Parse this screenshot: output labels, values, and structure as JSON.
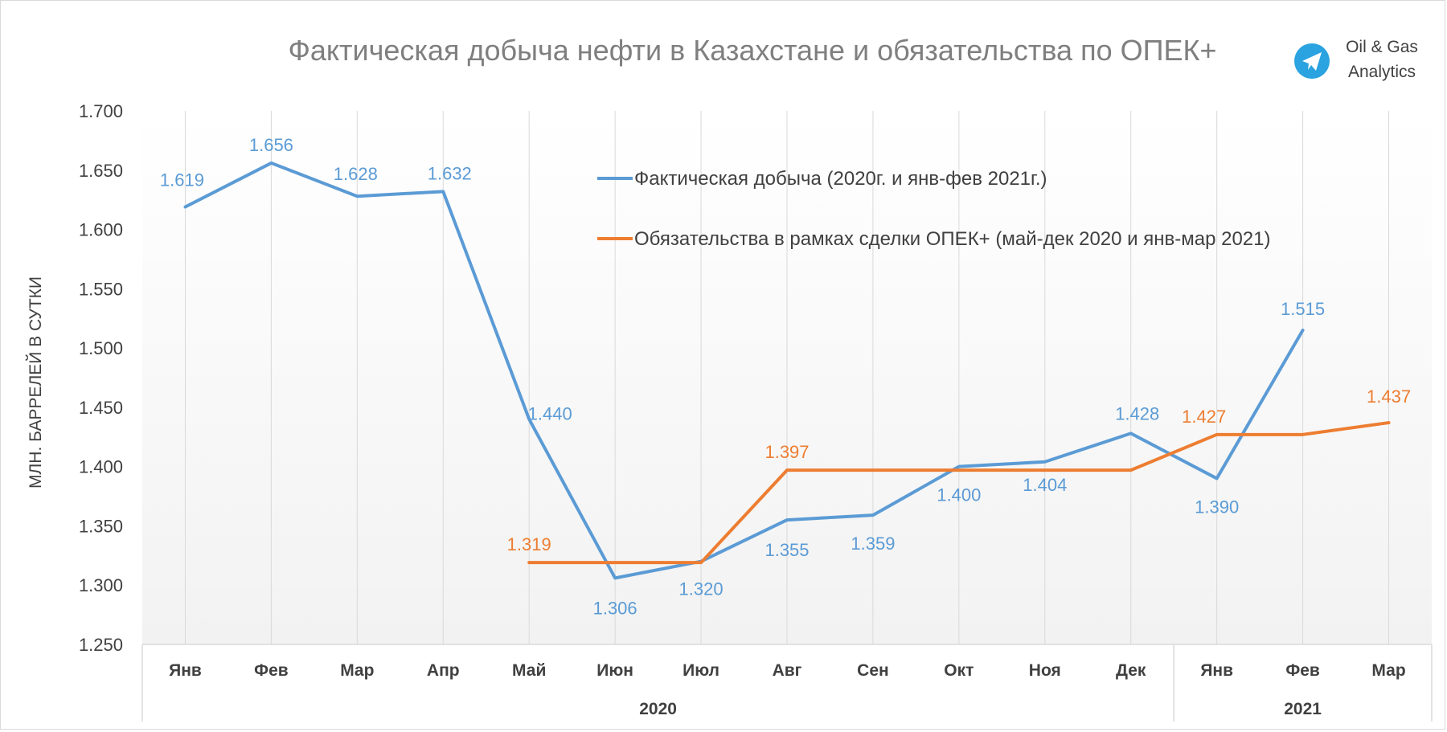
{
  "colors": {
    "actual": "#5b9bd5",
    "commitment": "#ed7d31",
    "text": "#404040",
    "title": "#7f7f7f",
    "grid": "#d9d9d9",
    "brand_circle": "#2aa3e0"
  },
  "brand": {
    "icon": "telegram-icon",
    "line1": "Oil & Gas",
    "line2": "Analytics"
  },
  "chart_data": {
    "type": "line",
    "title": "Фактическая добыча нефти в Казахстане и обязательства по ОПЕК+",
    "ylabel": "МЛН. БАРРЕЛЕЙ В СУТКИ",
    "xlabel": "",
    "ylim": [
      1.25,
      1.7
    ],
    "yticks": [
      "1.250",
      "1.300",
      "1.350",
      "1.400",
      "1.450",
      "1.500",
      "1.550",
      "1.600",
      "1.650",
      "1.700"
    ],
    "categories": [
      "Янв",
      "Фев",
      "Мар",
      "Апр",
      "Май",
      "Июн",
      "Июл",
      "Авг",
      "Сен",
      "Окт",
      "Ноя",
      "Дек",
      "Янв",
      "Фев",
      "Мар"
    ],
    "year_groups": [
      {
        "label": "2020",
        "count": 12
      },
      {
        "label": "2021",
        "count": 3
      }
    ],
    "grid": "vertical",
    "legend_position": "top-right",
    "series": [
      {
        "name": "Фактическая добыча (2020г. и янв-фев 2021г.)",
        "color": "#5b9bd5",
        "values": [
          1.619,
          1.656,
          1.628,
          1.632,
          1.44,
          1.306,
          1.32,
          1.355,
          1.359,
          1.4,
          1.404,
          1.428,
          1.39,
          1.515,
          null
        ],
        "labels": [
          "1.619",
          "1.656",
          "1.628",
          "1.632",
          "1.440",
          "1.306",
          "1.320",
          "1.355",
          "1.359",
          "1.400",
          "1.404",
          "1.428",
          "1.390",
          "1.515",
          ""
        ]
      },
      {
        "name": "Обязательства в рамках сделки ОПЕК+ (май-дек 2020 и янв-мар 2021)",
        "color": "#ed7d31",
        "values": [
          null,
          null,
          null,
          null,
          1.319,
          1.319,
          1.319,
          1.397,
          1.397,
          1.397,
          1.397,
          1.397,
          1.427,
          1.427,
          1.437
        ],
        "labels": [
          "",
          "",
          "",
          "",
          "1.319",
          "",
          "",
          "1.397",
          "",
          "",
          "",
          "",
          "1.427",
          "",
          "1.437"
        ]
      }
    ]
  }
}
